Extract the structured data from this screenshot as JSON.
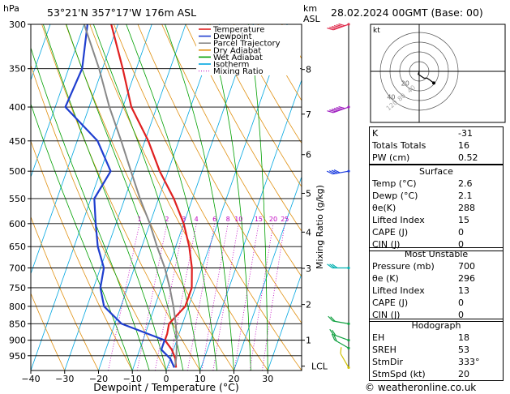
{
  "header": {
    "unit_label": "hPa",
    "location": "53°21'N  357°17'W  176m  ASL",
    "datetime": "28.02.2024  00GMT  (Base: 00)",
    "height_unit": "km",
    "height_ref": "ASL"
  },
  "chart_data": {
    "type": "skewt",
    "pressure_levels": [
      300,
      350,
      400,
      450,
      500,
      550,
      600,
      650,
      700,
      750,
      800,
      850,
      900,
      950
    ],
    "pressure_labels": [
      "300",
      "350",
      "400",
      "450",
      "500",
      "550",
      "600",
      "650",
      "700",
      "750",
      "800",
      "850",
      "900",
      "950"
    ],
    "p_top": 300,
    "p_bottom": 1000,
    "temp_ticks": [
      -40,
      -30,
      -20,
      -10,
      0,
      10,
      20,
      30
    ],
    "temp_tick_labels": [
      "−40",
      "−30",
      "−20",
      "−10",
      "0",
      "10",
      "20",
      "30"
    ],
    "xlim": [
      -40,
      40
    ],
    "skew_deg_per_100hpa": 6.5,
    "xlabel": "Dewpoint / Temperature (°C)",
    "ylabel_right": "Mixing Ratio (g/kg)",
    "height_km": [
      {
        "km": 8,
        "p": 351,
        "label": "8"
      },
      {
        "km": 7,
        "p": 410,
        "label": "7"
      },
      {
        "km": 6,
        "p": 472,
        "label": "6"
      },
      {
        "km": 5,
        "p": 540,
        "label": "5"
      },
      {
        "km": 4,
        "p": 618,
        "label": "4"
      },
      {
        "km": 3,
        "p": 701,
        "label": "3"
      },
      {
        "km": 2,
        "p": 795,
        "label": "2"
      },
      {
        "km": 1,
        "p": 900,
        "label": "1"
      }
    ],
    "lcl": {
      "p": 985,
      "label": "LCL"
    },
    "mixing_ratio_labels": [
      "1",
      "2",
      "3",
      "4",
      "6",
      "8",
      "10",
      "15",
      "20",
      "25"
    ],
    "mixing_ratio_values": [
      1,
      2,
      3,
      4,
      6,
      8,
      10,
      15,
      20,
      25
    ],
    "mixing_ratio_label_p": 600,
    "dry_adiabats_theta_c": [
      -30,
      -20,
      -10,
      0,
      10,
      20,
      30,
      40,
      50,
      60,
      70,
      80,
      90,
      100,
      110
    ],
    "moist_adiabats_c": [
      -10,
      -5,
      0,
      5,
      10,
      15,
      20,
      25,
      30
    ],
    "isotherms_c": [
      -110,
      -100,
      -90,
      -80,
      -70,
      -60,
      -50,
      -40,
      -30,
      -20,
      -10,
      0,
      10,
      20,
      30,
      40
    ],
    "series": [
      {
        "name": "Temperature",
        "color": "#e02020",
        "points": [
          [
            300,
            -52
          ],
          [
            350,
            -44
          ],
          [
            400,
            -37.5
          ],
          [
            450,
            -29
          ],
          [
            500,
            -22.5
          ],
          [
            550,
            -15.5
          ],
          [
            600,
            -10
          ],
          [
            650,
            -6
          ],
          [
            700,
            -3
          ],
          [
            750,
            -1
          ],
          [
            800,
            -1
          ],
          [
            850,
            -4
          ],
          [
            880,
            -3.5
          ],
          [
            900,
            -3.5
          ],
          [
            930,
            -0.5
          ],
          [
            960,
            1.5
          ],
          [
            990,
            2.6
          ]
        ]
      },
      {
        "name": "Dewpoint",
        "color": "#1f3ecf",
        "points": [
          [
            300,
            -59
          ],
          [
            350,
            -56
          ],
          [
            400,
            -57
          ],
          [
            450,
            -44
          ],
          [
            500,
            -37
          ],
          [
            550,
            -39
          ],
          [
            600,
            -36
          ],
          [
            650,
            -33
          ],
          [
            700,
            -29
          ],
          [
            750,
            -28
          ],
          [
            800,
            -25
          ],
          [
            850,
            -18
          ],
          [
            900,
            -3.6
          ],
          [
            930,
            -3.6
          ],
          [
            960,
            0
          ],
          [
            990,
            2.1
          ]
        ]
      },
      {
        "name": "Parcel Trajectory",
        "color": "#888888",
        "points": [
          [
            300,
            -60
          ],
          [
            350,
            -51
          ],
          [
            400,
            -44
          ],
          [
            450,
            -37
          ],
          [
            500,
            -31
          ],
          [
            550,
            -25.5
          ],
          [
            600,
            -20
          ],
          [
            650,
            -15.5
          ],
          [
            700,
            -11
          ],
          [
            750,
            -7.5
          ],
          [
            800,
            -4.5
          ],
          [
            850,
            -2
          ],
          [
            900,
            0
          ],
          [
            950,
            1.5
          ],
          [
            985,
            2.2
          ]
        ]
      }
    ],
    "legend": [
      {
        "name": "Temperature",
        "color": "#e02020",
        "style": "solid"
      },
      {
        "name": "Dewpoint",
        "color": "#1f3ecf",
        "style": "solid"
      },
      {
        "name": "Parcel Trajectory",
        "color": "#888888",
        "style": "solid"
      },
      {
        "name": "Dry Adiabat",
        "color": "#e09010",
        "style": "solid"
      },
      {
        "name": "Wet Adiabat",
        "color": "#00a000",
        "style": "solid"
      },
      {
        "name": "Isotherm",
        "color": "#00a6e0",
        "style": "solid"
      },
      {
        "name": "Mixing Ratio",
        "color": "#c000c0",
        "style": "dotted"
      }
    ],
    "wind_barbs": [
      {
        "p": 300,
        "color": "#e03050",
        "dir": 250,
        "speed": 55
      },
      {
        "p": 400,
        "color": "#a020c0",
        "dir": 250,
        "speed": 65
      },
      {
        "p": 500,
        "color": "#2040e0",
        "dir": 260,
        "speed": 35
      },
      {
        "p": 700,
        "color": "#00b0b0",
        "dir": 270,
        "speed": 25
      },
      {
        "p": 850,
        "color": "#10a040",
        "dir": 280,
        "speed": 15
      },
      {
        "p": 900,
        "color": "#10a040",
        "dir": 290,
        "speed": 20
      },
      {
        "p": 925,
        "color": "#10a040",
        "dir": 300,
        "speed": 20
      },
      {
        "p": 990,
        "color": "#d0c000",
        "dir": 330,
        "speed": 10
      }
    ],
    "hodograph": {
      "unit_label": "kt",
      "ring_labels": [
        "20",
        "40"
      ],
      "ring_kt": [
        10,
        20,
        30,
        40
      ],
      "gray_labels": [
        "120",
        "80",
        "40"
      ],
      "trace_kt": [
        [
          0,
          0
        ],
        [
          -1,
          3
        ],
        [
          2,
          5
        ],
        [
          5,
          7
        ],
        [
          8,
          7
        ],
        [
          11,
          9
        ],
        [
          15,
          12
        ]
      ]
    }
  },
  "indices": [
    {
      "label": "K",
      "value": "-31"
    },
    {
      "label": "Totals Totals",
      "value": "16"
    },
    {
      "label": "PW (cm)",
      "value": "0.52"
    }
  ],
  "surface": {
    "title": "Surface",
    "rows": [
      {
        "label": "Temp (°C)",
        "value": "2.6"
      },
      {
        "label": "Dewp (°C)",
        "value": "2.1"
      },
      {
        "label": "θe(K)",
        "value": "288"
      },
      {
        "label": "Lifted Index",
        "value": "15"
      },
      {
        "label": "CAPE (J)",
        "value": "0"
      },
      {
        "label": "CIN (J)",
        "value": "0"
      }
    ]
  },
  "most_unstable": {
    "title": "Most Unstable",
    "rows": [
      {
        "label": "Pressure (mb)",
        "value": "700"
      },
      {
        "label": "θe (K)",
        "value": "296"
      },
      {
        "label": "Lifted Index",
        "value": "13"
      },
      {
        "label": "CAPE (J)",
        "value": "0"
      },
      {
        "label": "CIN (J)",
        "value": "0"
      }
    ]
  },
  "hodograph_table": {
    "title": "Hodograph",
    "rows": [
      {
        "label": "EH",
        "value": "18"
      },
      {
        "label": "SREH",
        "value": "53"
      },
      {
        "label": "StmDir",
        "value": "333°"
      },
      {
        "label": "StmSpd (kt)",
        "value": "20"
      }
    ]
  },
  "footer": {
    "credit": "© weatheronline.co.uk"
  }
}
